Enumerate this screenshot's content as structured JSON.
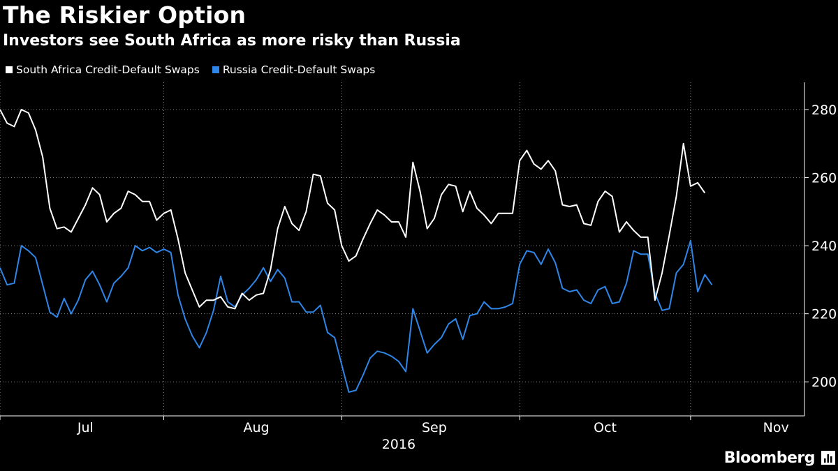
{
  "header": {
    "title": "The Riskier Option",
    "subtitle": "Investors see South Africa as more risky than Russia"
  },
  "legend": {
    "items": [
      {
        "label": "South Africa Credit-Default Swaps",
        "color": "#ffffff"
      },
      {
        "label": "Russia Credit-Default Swaps",
        "color": "#2e86e8"
      }
    ]
  },
  "brand": {
    "name": "Bloomberg",
    "icon": "bloomberg-chart-icon"
  },
  "chart_data": {
    "type": "line",
    "title": "The Riskier Option",
    "subtitle": "Investors see South Africa as more risky than Russia",
    "xlabel": "2016",
    "ylabel": "",
    "ylim": [
      190,
      288
    ],
    "yticks": [
      200,
      220,
      240,
      260,
      280
    ],
    "x_range": [
      0,
      113
    ],
    "month_ticks": [
      {
        "label": "Jul",
        "x": 12
      },
      {
        "label": "Aug",
        "x": 36
      },
      {
        "label": "Sep",
        "x": 61
      },
      {
        "label": "Oct",
        "x": 85
      },
      {
        "label": "Nov",
        "x": 109
      }
    ],
    "grid_x": [
      0,
      23,
      48,
      73,
      97
    ],
    "year_label": "2016",
    "year_x": 56,
    "grid": true,
    "series": [
      {
        "name": "South Africa Credit-Default Swaps",
        "color": "#ffffff",
        "values": [
          280,
          276,
          275,
          280,
          279,
          274,
          266,
          251,
          245,
          245.5,
          244,
          248,
          252,
          257,
          255,
          247,
          249.5,
          251,
          256,
          255,
          253,
          253,
          247.5,
          249.5,
          250.5,
          242,
          232,
          227,
          222,
          224,
          224,
          225,
          222,
          221.5,
          226,
          224,
          225.5,
          226,
          233,
          245,
          251.5,
          246.5,
          244.5,
          250,
          261,
          260.5,
          252.5,
          250.5,
          240,
          235.5,
          237,
          242,
          246.5,
          250.5,
          249,
          247,
          247,
          242.5,
          264.5,
          256,
          245,
          248,
          255,
          258,
          257.5,
          250,
          256,
          251,
          249,
          246.5,
          249.5,
          249.5,
          249.5,
          265,
          268,
          264,
          262.5,
          265,
          262,
          252,
          251.5,
          252,
          246.5,
          246,
          253,
          256,
          254.5,
          244,
          247,
          244.5,
          242.5,
          242.5,
          224,
          232,
          243,
          254.5,
          270,
          257.5,
          258.5,
          255.5
        ]
      },
      {
        "name": "Russia Credit-Default Swaps",
        "color": "#2e86e8",
        "values": [
          233.5,
          228.5,
          229,
          240,
          238.5,
          236.5,
          228.5,
          220.5,
          219,
          224.5,
          220,
          224,
          230,
          232.5,
          228.5,
          223.5,
          229,
          231,
          233.5,
          240,
          238.5,
          239.5,
          238,
          239,
          238,
          225.5,
          218.5,
          213.5,
          210,
          214.5,
          221,
          231,
          223.5,
          222,
          225.5,
          227.5,
          230,
          233.5,
          229.5,
          233,
          230.5,
          223.5,
          223.5,
          220.5,
          220.5,
          222.5,
          214.5,
          213,
          205,
          197,
          197.5,
          202,
          207,
          209,
          208.5,
          207.5,
          206,
          203,
          221.5,
          215,
          208.5,
          211,
          213,
          217,
          218.5,
          212.5,
          219.5,
          220,
          223.5,
          221.5,
          221.5,
          222,
          223,
          234.5,
          238.5,
          238,
          234.5,
          239,
          235,
          227.5,
          226.5,
          227,
          224,
          223,
          227,
          228,
          223,
          223.5,
          229,
          238.5,
          237.5,
          237.5,
          226,
          221,
          221.5,
          232,
          234.5,
          241.5,
          226.5,
          231.5,
          228.5
        ]
      }
    ]
  }
}
